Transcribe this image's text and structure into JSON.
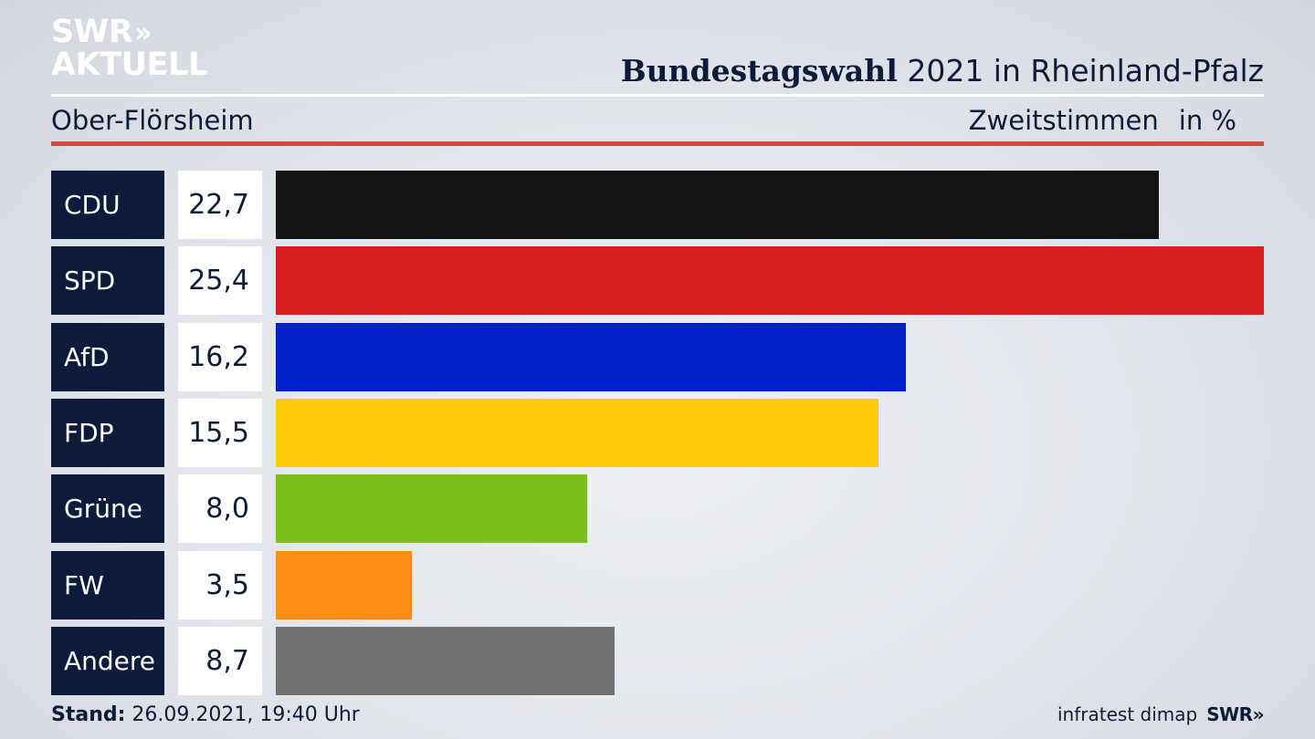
{
  "brand": {
    "logo_line1": "SWR",
    "logo_arrows": "»",
    "logo_line2": "AKTUELL"
  },
  "header": {
    "title_bold": "Bundestagswahl",
    "title_rest": "2021 in Rheinland-Pfalz",
    "region": "Ober-Flörsheim",
    "metric": "Zweitstimmen",
    "unit": "in %"
  },
  "chart_data": {
    "type": "bar",
    "orientation": "horizontal",
    "title": "Bundestagswahl 2021 in Rheinland-Pfalz",
    "subtitle": "Ober-Flörsheim",
    "categories": [
      "CDU",
      "SPD",
      "AfD",
      "FDP",
      "Grüne",
      "FW",
      "Andere"
    ],
    "values": [
      22.7,
      25.4,
      16.2,
      15.5,
      8.0,
      3.5,
      8.7
    ],
    "value_labels": [
      "22,7",
      "25,4",
      "16,2",
      "15,5",
      "8,0",
      "3,5",
      "8,7"
    ],
    "colors": [
      "#141414",
      "#d62020",
      "#0020c8",
      "#fdcc0a",
      "#7bbe1e",
      "#fe8c16",
      "#717171"
    ],
    "xlim": [
      0,
      25.4
    ],
    "grid": false,
    "legend": "none"
  },
  "footer": {
    "stand_label": "Stand:",
    "stand_value": "26.09.2021, 19:40 Uhr",
    "source": "infratest dimap",
    "source_logo": "SWR»"
  }
}
